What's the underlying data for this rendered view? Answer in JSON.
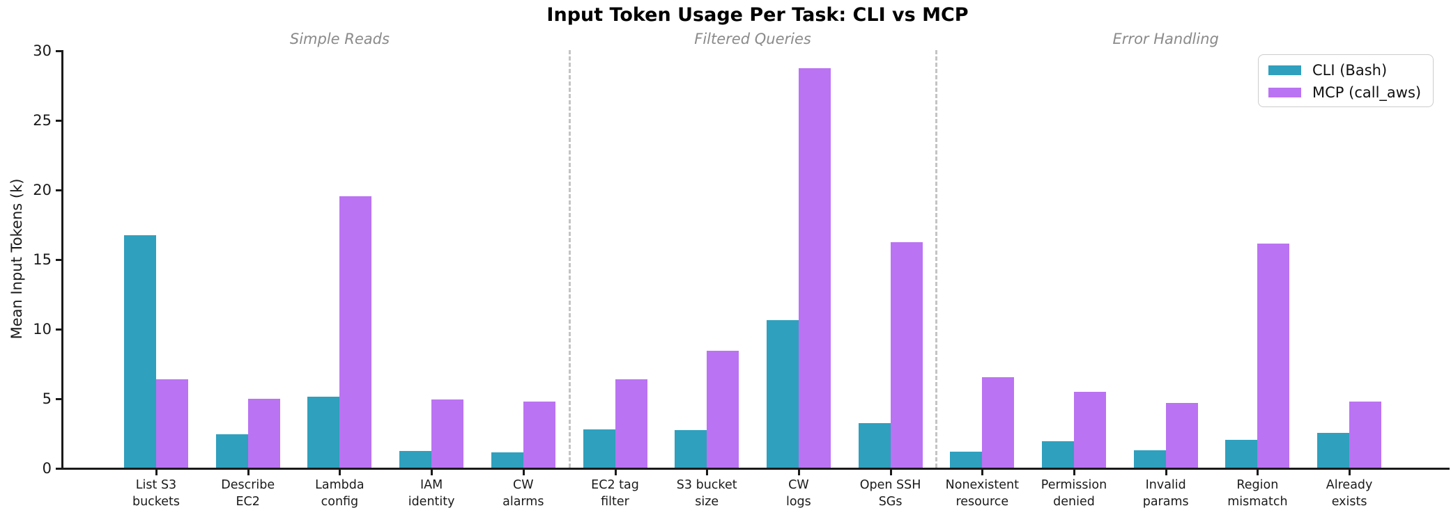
{
  "title": "Input Token Usage Per Task: CLI vs MCP",
  "y_axis": {
    "label": "Mean Input Tokens (k)"
  },
  "legend": {
    "items": [
      {
        "label": "CLI (Bash)",
        "color": "#2fa0be"
      },
      {
        "label": "MCP (call_aws)",
        "color": "#ba73f2"
      }
    ]
  },
  "colors": {
    "cli": "#2fa0be",
    "mcp": "#ba73f2",
    "separator": "#c4c4c4",
    "section_label": "#8a8a8a"
  },
  "chart_data": {
    "type": "bar",
    "title": "Input Token Usage Per Task: CLI vs MCP",
    "xlabel": "",
    "ylabel": "Mean Input Tokens (k)",
    "ylim": [
      0,
      30
    ],
    "yticks": [
      0,
      5,
      10,
      15,
      20,
      25,
      30
    ],
    "grid": false,
    "legend_position": "upper right",
    "categories": [
      "List S3\nbuckets",
      "Describe\nEC2",
      "Lambda\nconfig",
      "IAM\nidentity",
      "CW\nalarms",
      "EC2 tag\nfilter",
      "S3 bucket\nsize",
      "CW\nlogs",
      "Open SSH\nSGs",
      "Nonexistent\nresource",
      "Permission\ndenied",
      "Invalid\nparams",
      "Region\nmismatch",
      "Already\nexists"
    ],
    "series": [
      {
        "name": "CLI (Bash)",
        "color": "#2fa0be",
        "values": [
          16.7,
          2.4,
          5.1,
          1.2,
          1.1,
          2.75,
          2.7,
          10.6,
          3.2,
          1.15,
          1.9,
          1.25,
          2.0,
          2.5
        ]
      },
      {
        "name": "MCP (call_aws)",
        "color": "#ba73f2",
        "values": [
          6.35,
          4.95,
          19.5,
          4.9,
          4.75,
          6.35,
          8.4,
          28.7,
          16.2,
          6.5,
          5.45,
          4.65,
          16.1,
          4.75
        ]
      }
    ],
    "sections": [
      {
        "label": "Simple Reads",
        "from": 0,
        "to": 4
      },
      {
        "label": "Filtered Queries",
        "from": 5,
        "to": 8
      },
      {
        "label": "Error Handling",
        "from": 9,
        "to": 13
      }
    ]
  }
}
